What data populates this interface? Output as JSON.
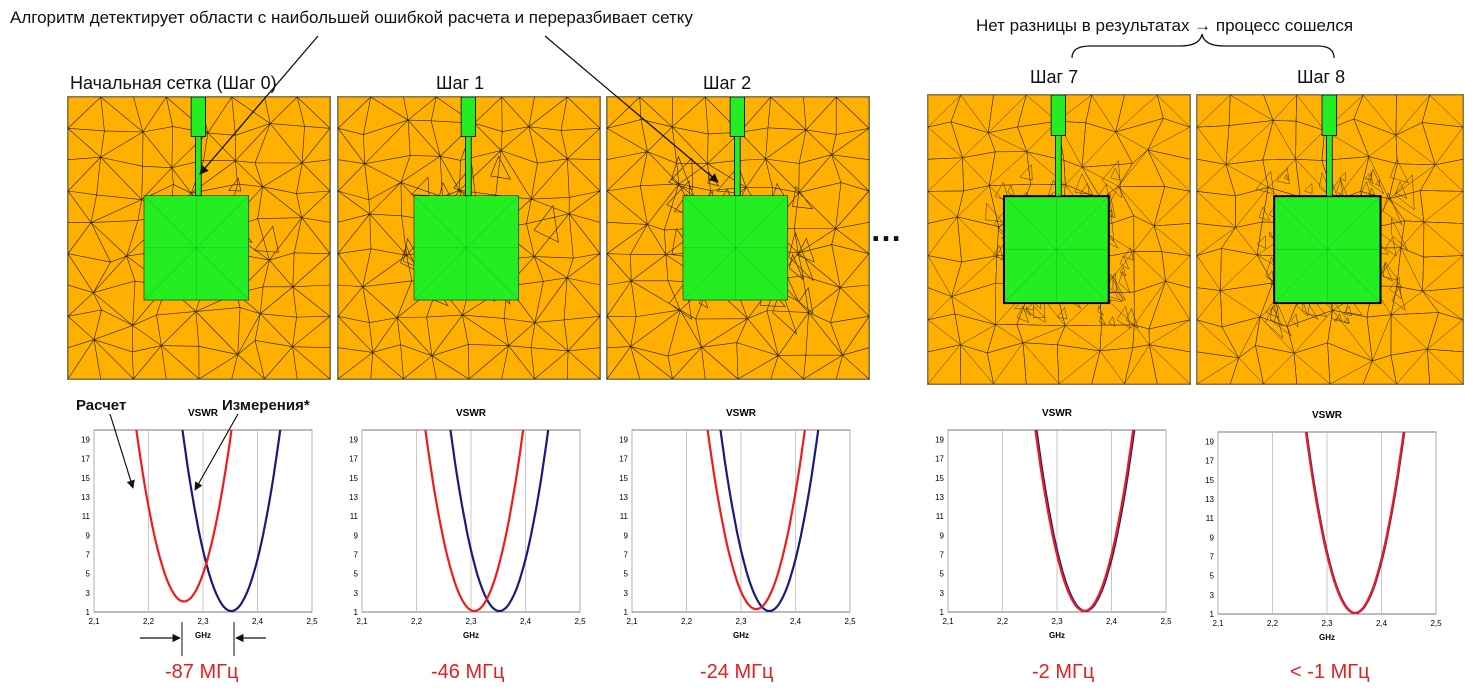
{
  "headline_left": "Алгоритм детектирует области с наибольшей ошибкой расчета и переразбивает сетку",
  "headline_right": "Нет разницы в результатах → процесс сошелся",
  "ellipsis": "…",
  "legend": {
    "simulation": "Расчет",
    "measurement": "Измерения*"
  },
  "colors": {
    "substrate": "#ffb000",
    "patch": "#22ee22",
    "mesh_line": "#2a2200",
    "simulation": "#ee1c1c",
    "measurement": "#1a1a80",
    "shift_text": "#e32020"
  },
  "steps": [
    {
      "title": "Начальная сетка (Шаг 0)",
      "density": 0,
      "shift_label": "-87 МГц"
    },
    {
      "title": "Шаг 1",
      "density": 1,
      "shift_label": "-46 МГц"
    },
    {
      "title": "Шаг 2",
      "density": 2,
      "shift_label": "-24 МГц"
    },
    {
      "title": "Шаг 7",
      "density": 7,
      "shift_label": "-2 МГц"
    },
    {
      "title": "Шаг 8",
      "density": 8,
      "shift_label": "< -1 МГц"
    }
  ],
  "chart_data": [
    {
      "type": "line",
      "title": "VSWR",
      "xlabel": "GHz",
      "xlim": [
        2.1,
        2.5
      ],
      "ylim": [
        1,
        20
      ],
      "xticks": [
        "2,1",
        "2,2",
        "2,3",
        "2,4",
        "2,5"
      ],
      "yticks": [
        "1",
        "3",
        "5",
        "7",
        "9",
        "11",
        "13",
        "15",
        "17",
        "19"
      ],
      "series": [
        {
          "role": "simulation",
          "min_x": 2.265,
          "min_y": 2.1,
          "k": 2350
        },
        {
          "role": "measurement",
          "min_x": 2.352,
          "min_y": 1.1,
          "k": 2350
        }
      ]
    },
    {
      "type": "line",
      "title": "VSWR",
      "xlabel": "GHz",
      "xlim": [
        2.1,
        2.5
      ],
      "ylim": [
        1,
        20
      ],
      "xticks": [
        "2,1",
        "2,2",
        "2,3",
        "2,4",
        "2,5"
      ],
      "yticks": [
        "1",
        "3",
        "5",
        "7",
        "9",
        "11",
        "13",
        "15",
        "17",
        "19"
      ],
      "series": [
        {
          "role": "simulation",
          "min_x": 2.306,
          "min_y": 1.1,
          "k": 2350
        },
        {
          "role": "measurement",
          "min_x": 2.352,
          "min_y": 1.1,
          "k": 2350
        }
      ]
    },
    {
      "type": "line",
      "title": "VSWR",
      "xlabel": "GHz",
      "xlim": [
        2.1,
        2.5
      ],
      "ylim": [
        1,
        20
      ],
      "xticks": [
        "2,1",
        "2,2",
        "2,3",
        "2,4",
        "2,5"
      ],
      "yticks": [
        "1",
        "3",
        "5",
        "7",
        "9",
        "11",
        "13",
        "15",
        "17",
        "19"
      ],
      "series": [
        {
          "role": "simulation",
          "min_x": 2.328,
          "min_y": 1.3,
          "k": 2350
        },
        {
          "role": "measurement",
          "min_x": 2.352,
          "min_y": 1.1,
          "k": 2350
        }
      ]
    },
    {
      "type": "line",
      "title": "VSWR",
      "xlabel": "GHz",
      "xlim": [
        2.1,
        2.5
      ],
      "ylim": [
        1,
        20
      ],
      "xticks": [
        "2,1",
        "2,2",
        "2,3",
        "2,4",
        "2,5"
      ],
      "yticks": [
        "1",
        "3",
        "5",
        "7",
        "9",
        "11",
        "13",
        "15",
        "17",
        "19"
      ],
      "series": [
        {
          "role": "simulation",
          "min_x": 2.35,
          "min_y": 1.1,
          "k": 2350
        },
        {
          "role": "measurement",
          "min_x": 2.352,
          "min_y": 1.1,
          "k": 2350
        }
      ]
    },
    {
      "type": "line",
      "title": "VSWR",
      "xlabel": "GHz",
      "xlim": [
        2.1,
        2.5
      ],
      "ylim": [
        1,
        20
      ],
      "xticks": [
        "2,1",
        "2,2",
        "2,3",
        "2,4",
        "2,5"
      ],
      "yticks": [
        "1",
        "3",
        "5",
        "7",
        "9",
        "11",
        "13",
        "15",
        "17",
        "19"
      ],
      "series": [
        {
          "role": "simulation",
          "min_x": 2.351,
          "min_y": 1.1,
          "k": 2350
        },
        {
          "role": "measurement",
          "min_x": 2.352,
          "min_y": 1.1,
          "k": 2350
        }
      ]
    }
  ]
}
